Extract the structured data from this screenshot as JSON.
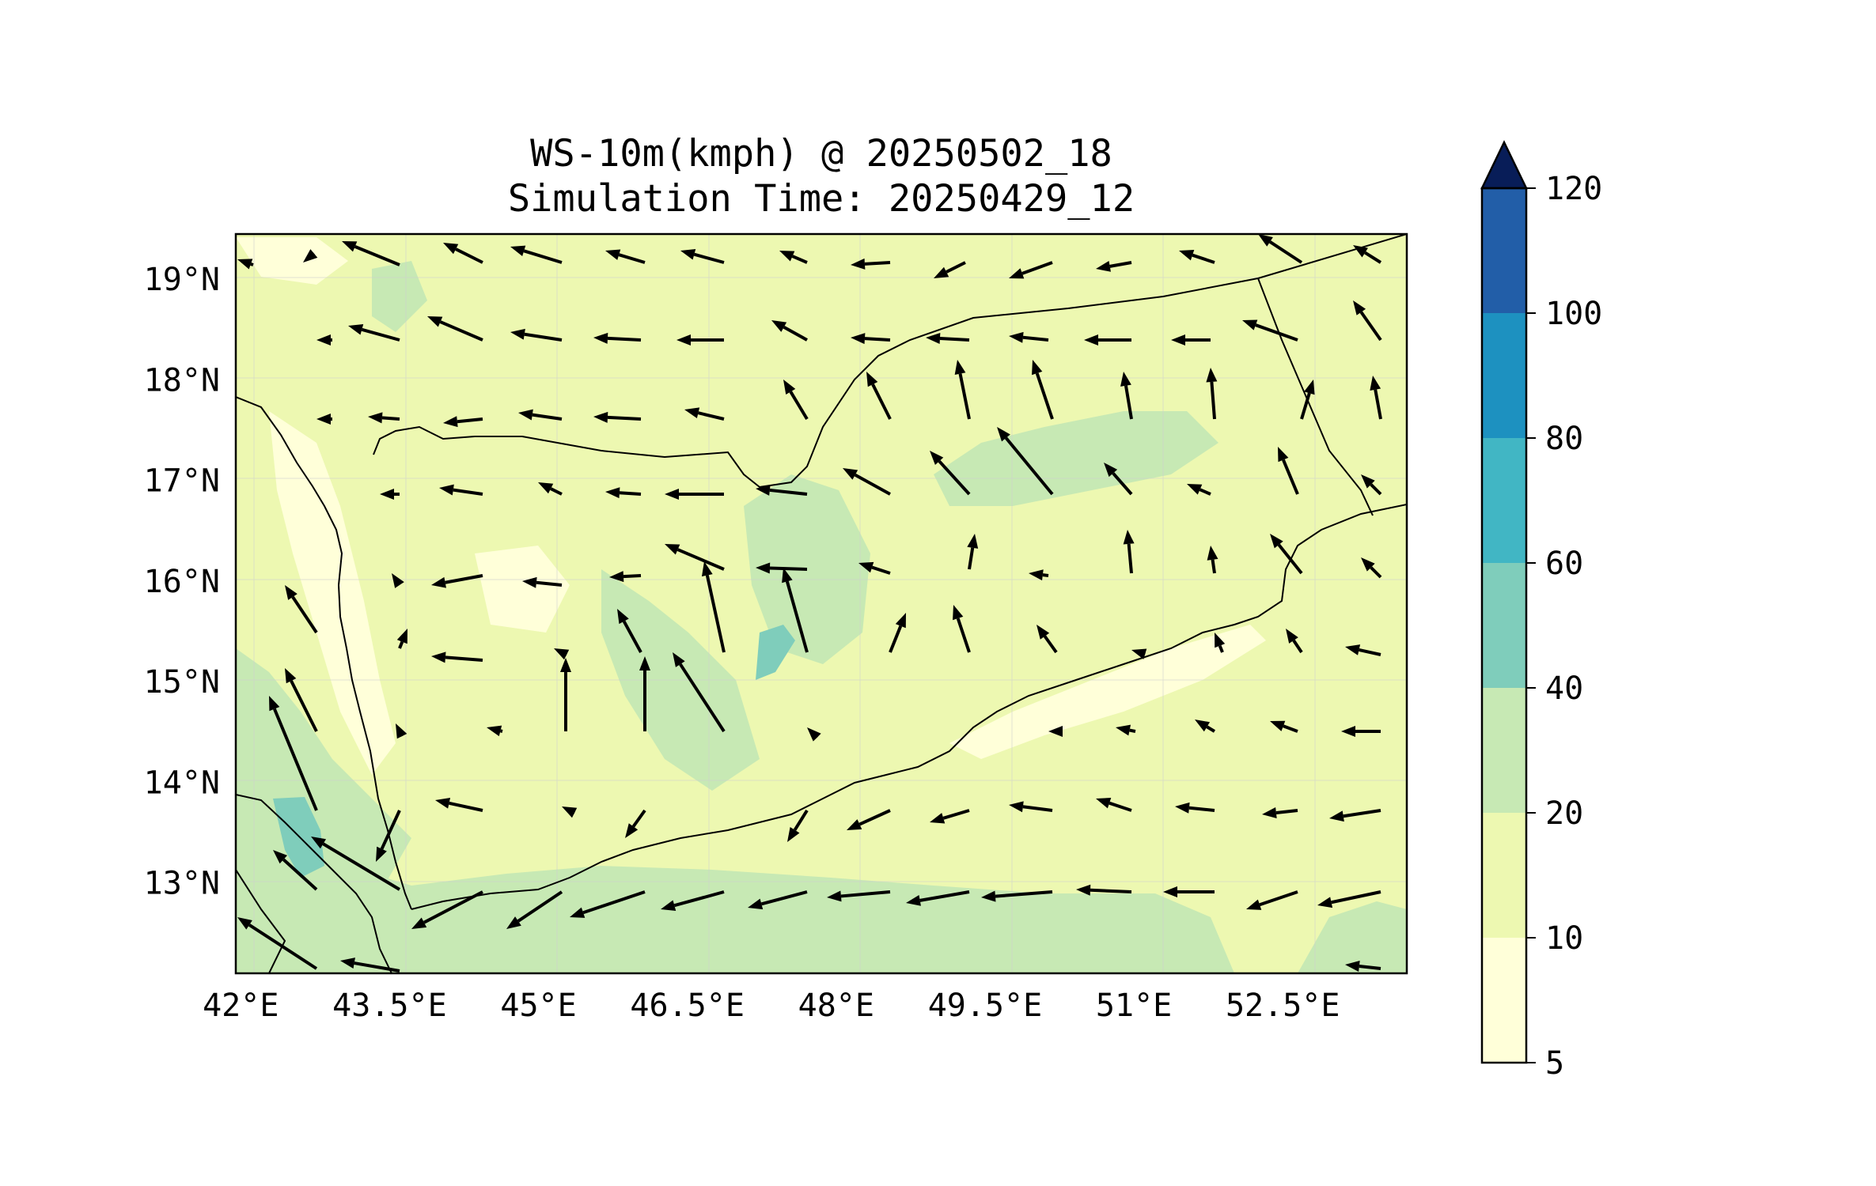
{
  "title": {
    "line1": "WS-10m(kmph) @ 20250502_18",
    "line2": "Simulation Time: 20250429_12"
  },
  "map": {
    "lon_range": [
      41.95,
      53.75
    ],
    "lat_range": [
      12.1,
      19.45
    ],
    "lon_ticks": [
      42,
      43.5,
      45,
      46.5,
      48,
      49.5,
      51,
      52.5
    ],
    "lon_tick_labels": [
      "42°E",
      "43.5°E",
      "45°E",
      "46.5°E",
      "48°E",
      "49.5°E",
      "51°E",
      "52.5°E"
    ],
    "lat_ticks": [
      19,
      18,
      17,
      16,
      15,
      14,
      13
    ],
    "lat_tick_labels": [
      "19°N",
      "18°N",
      "17°N",
      "16°N",
      "15°N",
      "14°N",
      "13°N"
    ],
    "gridlines": true,
    "wind_vectors": "grid of arrows showing 10 m wind direction and speed"
  },
  "colorbar": {
    "levels": [
      5,
      10,
      20,
      40,
      60,
      80,
      100,
      120
    ],
    "tick_labels": [
      "5",
      "10",
      "20",
      "40",
      "60",
      "80",
      "100",
      "120"
    ],
    "colors": [
      "#ffffd9",
      "#edf8b1",
      "#c7e9b4",
      "#7fcdbb",
      "#41b6c4",
      "#1d91c0",
      "#225ea8",
      "#0c2c84"
    ],
    "extend": "max",
    "extend_color": "#081d58"
  },
  "colors": {
    "land_base": "#edf8b1",
    "sea_base": "#edf8b1",
    "coastline": "#000000",
    "arrow": "#000000"
  }
}
